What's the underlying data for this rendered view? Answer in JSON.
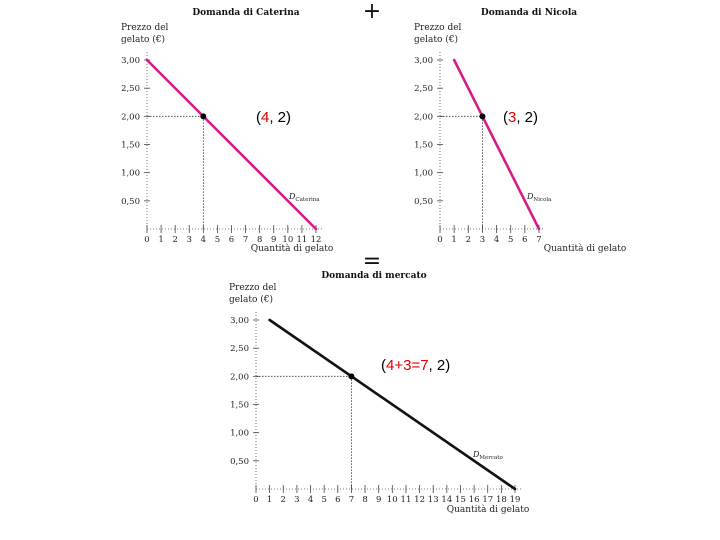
{
  "operators": {
    "plus": "+",
    "equals": "="
  },
  "chart_data": [
    {
      "id": "caterina",
      "type": "line",
      "title": "Domanda di Caterina",
      "ylabel": [
        "Prezzo del",
        "gelato (€)"
      ],
      "xlabel": "Quantità di gelato",
      "xlim": [
        0,
        12
      ],
      "ylim": [
        0,
        3
      ],
      "xticks": [
        0,
        1,
        2,
        3,
        4,
        5,
        6,
        7,
        8,
        9,
        10,
        11,
        12
      ],
      "yticks": [
        0.5,
        1,
        1.5,
        2,
        2.5,
        3
      ],
      "ytick_labels": [
        "0,50",
        "1,00",
        "1,50",
        "2,00",
        "2,50",
        "3,00"
      ],
      "series": [
        {
          "name": "D Caterina",
          "x": [
            0,
            12
          ],
          "y": [
            3,
            0
          ],
          "color": "#d81b87"
        }
      ],
      "curve_label": {
        "main": "D",
        "sub": "Caterina"
      },
      "point": {
        "x": 4,
        "y": 2
      },
      "annotation": {
        "open": "(",
        "highlight": "4",
        "rest": ", 2)"
      }
    },
    {
      "id": "nicola",
      "type": "line",
      "title": "Domanda di Nicola",
      "ylabel": [
        "Prezzo del",
        "gelato (€)"
      ],
      "xlabel": "Quantità di gelato",
      "xlim": [
        0,
        7
      ],
      "ylim": [
        0,
        3
      ],
      "xticks": [
        0,
        1,
        2,
        3,
        4,
        5,
        6,
        7
      ],
      "yticks": [
        0.5,
        1,
        1.5,
        2,
        2.5,
        3
      ],
      "ytick_labels": [
        "0,50",
        "1,00",
        "1,50",
        "2,00",
        "2,50",
        "3,00"
      ],
      "series": [
        {
          "name": "D Nicola",
          "x": [
            1,
            3,
            4,
            7
          ],
          "y": [
            3,
            2,
            1.5,
            0
          ],
          "color": "#d81b87"
        }
      ],
      "curve_label": {
        "main": "D",
        "sub": "Nicola"
      },
      "point": {
        "x": 3,
        "y": 2
      },
      "annotation": {
        "open": "(",
        "highlight": "3",
        "rest": ", 2)"
      }
    },
    {
      "id": "mercato",
      "type": "line",
      "title": "Domanda di mercato",
      "ylabel": [
        "Prezzo del",
        "gelato (€)"
      ],
      "xlabel": "Quantità di gelato",
      "xlim": [
        0,
        19
      ],
      "ylim": [
        0,
        3
      ],
      "xticks": [
        0,
        1,
        2,
        3,
        4,
        5,
        6,
        7,
        8,
        9,
        10,
        11,
        12,
        13,
        14,
        15,
        16,
        17,
        18,
        19
      ],
      "yticks": [
        0.5,
        1,
        1.5,
        2,
        2.5,
        3
      ],
      "ytick_labels": [
        "0,50",
        "1,00",
        "1,50",
        "2,00",
        "2,50",
        "3,00"
      ],
      "series": [
        {
          "name": "D Mercato",
          "x": [
            1,
            7,
            19
          ],
          "y": [
            3,
            2,
            0
          ],
          "color": "#111111"
        }
      ],
      "curve_label": {
        "main": "D",
        "sub": "Mercato"
      },
      "point": {
        "x": 7,
        "y": 2
      },
      "annotation": {
        "open": "(",
        "highlight": "4+3=7",
        "rest": ", 2)"
      }
    }
  ]
}
